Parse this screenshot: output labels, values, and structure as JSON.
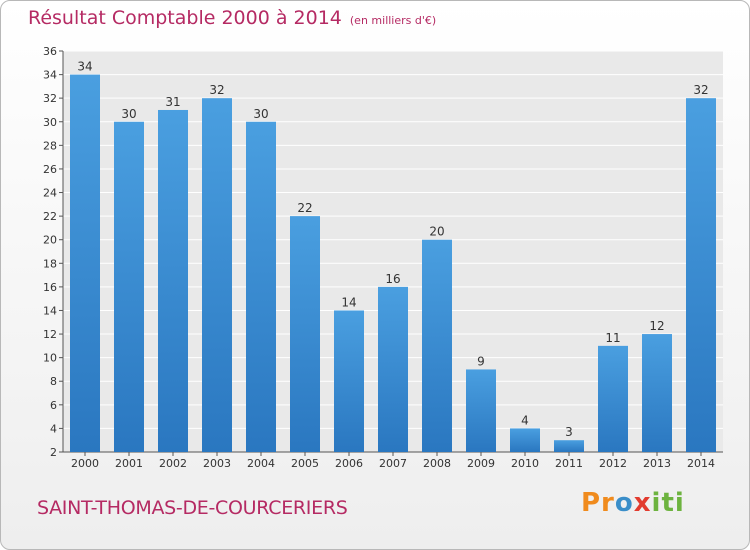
{
  "header": {
    "title": "Résultat Comptable 2000 à 2014",
    "subtitle": "(en milliers d'€)"
  },
  "footer": {
    "town": "SAINT-THOMAS-DE-COURCERIERS",
    "logo_parts": [
      "Pr",
      "o",
      "x",
      "iti"
    ]
  },
  "colors": {
    "bar": "#4a9fe0",
    "bar_dark": "#2a77c0",
    "title": "#b52a63"
  },
  "chart_data": {
    "type": "bar",
    "title": "Résultat Comptable 2000 à 2014",
    "xlabel": "",
    "ylabel": "",
    "categories": [
      "2000",
      "2001",
      "2002",
      "2003",
      "2004",
      "2005",
      "2006",
      "2007",
      "2008",
      "2009",
      "2010",
      "2011",
      "2012",
      "2013",
      "2014"
    ],
    "values": [
      34,
      30,
      31,
      32,
      30,
      22,
      14,
      16,
      20,
      9,
      4,
      3,
      11,
      12,
      32
    ],
    "ylim": [
      2,
      36
    ],
    "yticks": [
      2,
      4,
      6,
      8,
      10,
      12,
      14,
      16,
      18,
      20,
      22,
      24,
      26,
      28,
      30,
      32,
      34,
      36
    ],
    "grid": true
  }
}
